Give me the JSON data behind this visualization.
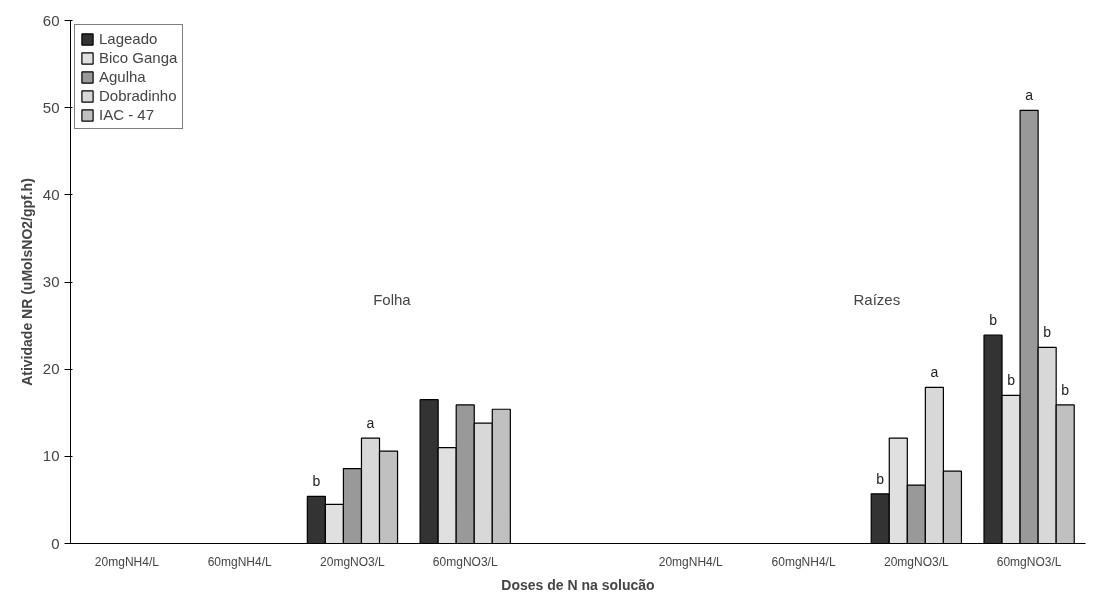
{
  "chart_data": {
    "type": "bar",
    "xlabel": "Doses de N na solucão",
    "ylabel": "Atividade NR (uMolsNO2/gpf.h)",
    "categories": [
      "20mgNH4/L",
      "60mgNH4/L",
      "20mgNO3/L",
      "60mgNO3/L",
      null,
      "20mgNH4/L",
      "60mgNH4/L",
      "20mgNO3/L",
      "60mgNO3/L"
    ],
    "series": [
      {
        "name": "Lageado",
        "color": "#333333",
        "values": [
          null,
          null,
          5.4,
          16.5,
          null,
          null,
          null,
          5.7,
          23.9
        ],
        "value_labels": [
          null,
          null,
          "b",
          null,
          null,
          null,
          null,
          "b",
          "b"
        ]
      },
      {
        "name": "Bico Ganga",
        "color": "#e0e0e0",
        "values": [
          null,
          null,
          4.5,
          11.0,
          null,
          null,
          null,
          12.1,
          17.0
        ],
        "value_labels": [
          null,
          null,
          null,
          null,
          null,
          null,
          null,
          null,
          "b"
        ]
      },
      {
        "name": "Agulha",
        "color": "#999999",
        "values": [
          null,
          null,
          8.6,
          15.9,
          null,
          null,
          null,
          6.7,
          49.7
        ],
        "value_labels": [
          null,
          null,
          null,
          null,
          null,
          null,
          null,
          null,
          "a"
        ]
      },
      {
        "name": "Dobradinho",
        "color": "#d8d8d8",
        "values": [
          null,
          null,
          12.1,
          13.8,
          null,
          null,
          null,
          17.9,
          22.5
        ],
        "value_labels": [
          null,
          null,
          "a",
          null,
          null,
          null,
          null,
          "a",
          "b"
        ]
      },
      {
        "name": "IAC - 47",
        "color": "#c0c0c0",
        "values": [
          null,
          null,
          10.6,
          15.4,
          null,
          null,
          null,
          8.3,
          15.9
        ],
        "value_labels": [
          null,
          null,
          null,
          null,
          null,
          null,
          null,
          null,
          "b"
        ]
      }
    ],
    "annotations": [
      "Folha",
      "Raízes"
    ],
    "ylim": [
      0,
      60
    ],
    "yticks": [
      0,
      10,
      20,
      30,
      40,
      50,
      60
    ],
    "grid": false,
    "legend": "top left"
  }
}
